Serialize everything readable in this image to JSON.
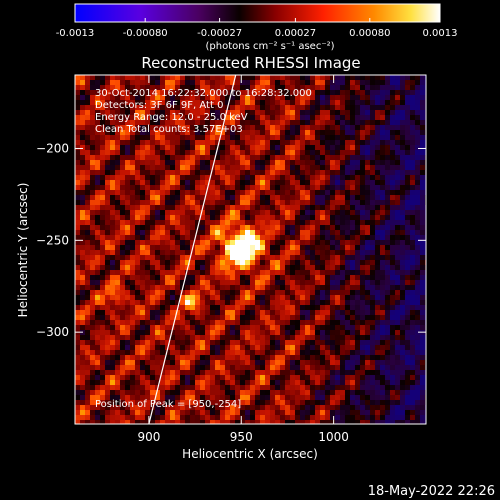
{
  "colorbar": {
    "ticks": [
      "-0.0013",
      "-0.00080",
      "-0.00027",
      "0.00027",
      "0.00080",
      "0.0013"
    ],
    "tick_values": [
      -0.0013,
      -0.0008,
      -0.00027,
      0.00027,
      0.0008,
      0.0013
    ],
    "range": [
      -0.0013,
      0.0013
    ],
    "unit_label": "(photons cm⁻² s⁻¹ asec⁻²)"
  },
  "chart_data": {
    "type": "heatmap",
    "title": "Reconstructed RHESSI Image",
    "xlabel": "Heliocentric X (arcsec)",
    "ylabel": "Heliocentric Y (arcsec)",
    "xlim": [
      860,
      1050
    ],
    "ylim": [
      -350,
      -160
    ],
    "x_ticks": [
      900,
      950,
      1000
    ],
    "y_ticks": [
      -200,
      -250,
      -300
    ],
    "grid": false,
    "colormap": "rainbow-red-yellow-white",
    "peak": {
      "x": 950,
      "y": -254
    },
    "secondary_sources": [
      {
        "x": 923,
        "y": -283
      },
      {
        "x": 882,
        "y": -281
      }
    ],
    "limb_line": [
      [
        900,
        -350
      ],
      [
        947,
        -160
      ]
    ]
  },
  "annotations": [
    "30-Oct-2014 16:22:32.000 to 16:28:32.000",
    "Detectors: 3F 6F 9F, Att 0",
    "Energy Range: 12.0 - 25.0 keV",
    "Clean     Total counts: 3.57E+03"
  ],
  "peak_text": "Position of Peak = [950,-254]",
  "timestamp": "18-May-2022 22:26",
  "colors": {
    "background": "#000000",
    "text": "#ffffff"
  }
}
